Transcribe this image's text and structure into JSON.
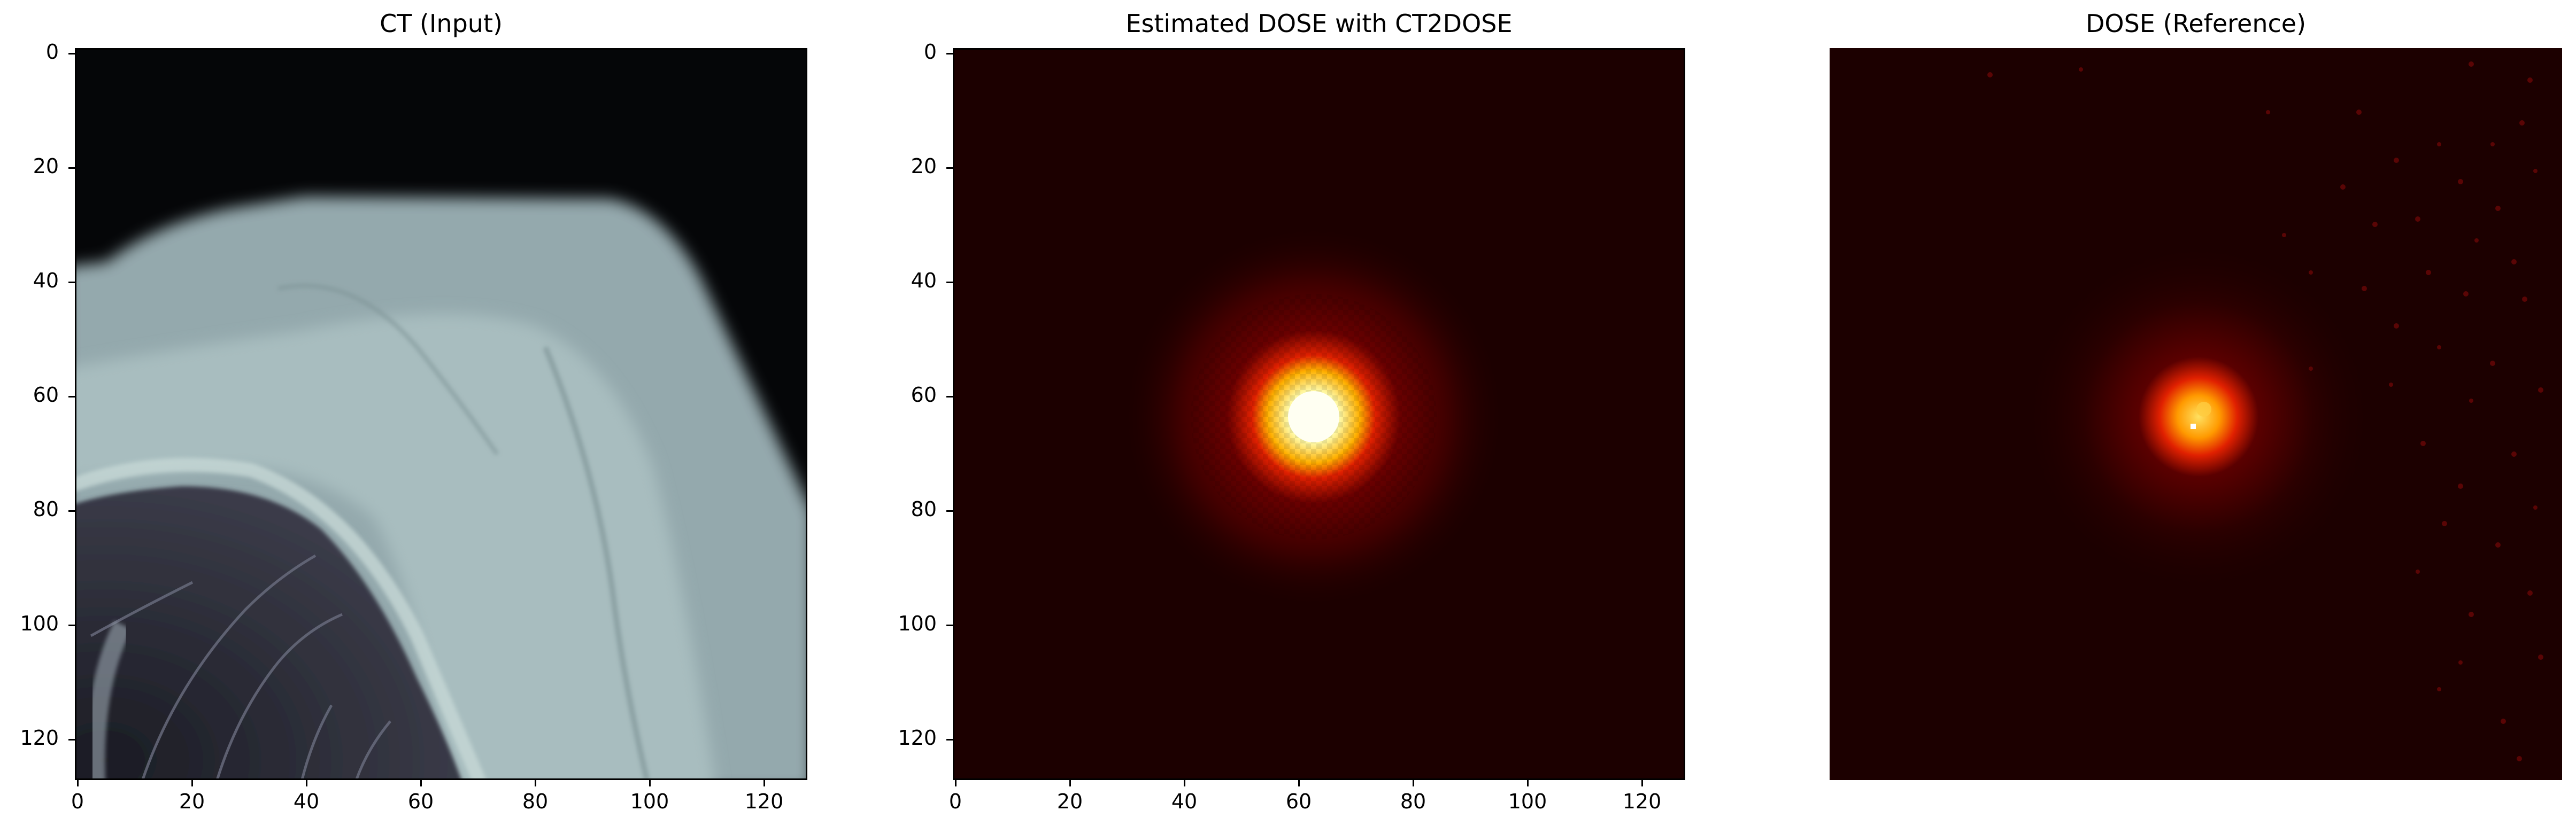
{
  "figure": {
    "panels": [
      {
        "title": "CT (Input)",
        "colormap": "bone",
        "show_axes": true,
        "xticks": [
          "0",
          "20",
          "40",
          "60",
          "80",
          "100",
          "120"
        ],
        "yticks": [
          "0",
          "20",
          "40",
          "60",
          "80",
          "100",
          "120"
        ]
      },
      {
        "title": "Estimated DOSE with CT2DOSE",
        "colormap": "hot",
        "show_axes": true,
        "xticks": [
          "0",
          "20",
          "40",
          "60",
          "80",
          "100",
          "120"
        ],
        "yticks": [
          "0",
          "20",
          "40",
          "60",
          "80",
          "100",
          "120"
        ]
      },
      {
        "title": "DOSE (Reference)",
        "colormap": "hot",
        "show_axes": false
      }
    ],
    "image_extent": [
      0,
      128
    ],
    "colors": {
      "ct_background": "#050608",
      "ct_soft_tissue": "#94a9ad",
      "ct_bright_tissue": "#b7cccc",
      "ct_lung": "#2a2b36",
      "dose_background": "#1c0000",
      "dose_core": "#ffffd8",
      "dose_mid": "#ff7a00",
      "dose_halo": "#8a0000"
    }
  }
}
